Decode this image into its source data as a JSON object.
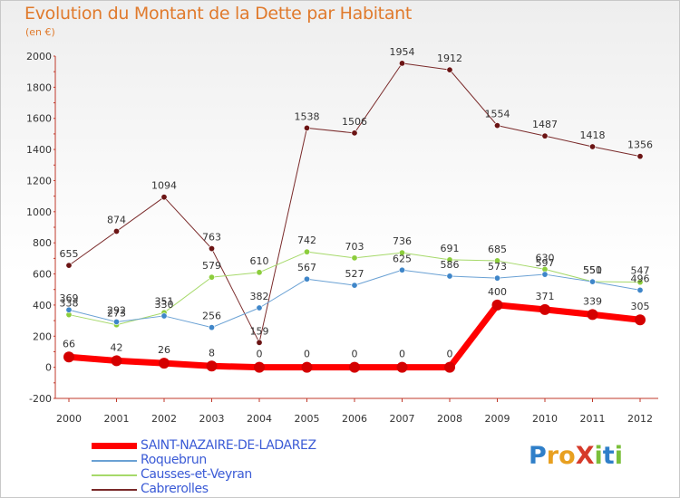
{
  "title": "Evolution du Montant de la Dette par Habitant",
  "subtitle": "(en €)",
  "logo": {
    "text": "ProXiti",
    "letters": [
      {
        "ch": "P",
        "color": "#2f7fc9"
      },
      {
        "ch": "r",
        "color": "#e8a020"
      },
      {
        "ch": "o",
        "color": "#e8a020"
      },
      {
        "ch": "X",
        "color": "#d63a2a"
      },
      {
        "ch": "i",
        "color": "#7bbf3a"
      },
      {
        "ch": "t",
        "color": "#2f7fc9"
      },
      {
        "ch": "i",
        "color": "#7bbf3a"
      }
    ]
  },
  "chart_data": {
    "type": "line",
    "title": "Evolution du Montant de la Dette par Habitant",
    "ylabel": "(en €)",
    "xlabel": "",
    "ylim": [
      -200,
      2000
    ],
    "yticks": [
      -200,
      0,
      200,
      400,
      600,
      800,
      1000,
      1200,
      1400,
      1600,
      1800,
      2000
    ],
    "categories": [
      "2000",
      "2001",
      "2002",
      "2003",
      "2004",
      "2005",
      "2006",
      "2007",
      "2008",
      "2009",
      "2010",
      "2011",
      "2012"
    ],
    "grid": false,
    "legend": "bottom-left",
    "series": [
      {
        "name": "SAINT-NAZAIRE-DE-LADAREZ",
        "color": "#ff0000",
        "markerColor": "#d40000",
        "width": 7,
        "marker": 6,
        "values": [
          66,
          42,
          26,
          8,
          0,
          0,
          0,
          0,
          0,
          400,
          371,
          339,
          305
        ]
      },
      {
        "name": "Roquebrun",
        "color": "#6aa1d4",
        "markerColor": "#3f86c9",
        "width": 1,
        "marker": 3.2,
        "values": [
          369,
          292,
          330,
          256,
          382,
          567,
          527,
          625,
          586,
          573,
          597,
          550,
          496
        ]
      },
      {
        "name": "Causses-et-Veyran",
        "color": "#a6d96a",
        "markerColor": "#8ccd3c",
        "width": 1,
        "marker": 3.2,
        "values": [
          338,
          273,
          351,
          579,
          610,
          742,
          703,
          736,
          691,
          685,
          630,
          551,
          547
        ]
      },
      {
        "name": "Cabrerolles",
        "color": "#7a2a2a",
        "markerColor": "#6b1414",
        "width": 1,
        "marker": 3.2,
        "values": [
          655,
          874,
          1094,
          763,
          159,
          1538,
          1506,
          1954,
          1912,
          1554,
          1487,
          1418,
          1356
        ]
      }
    ]
  }
}
